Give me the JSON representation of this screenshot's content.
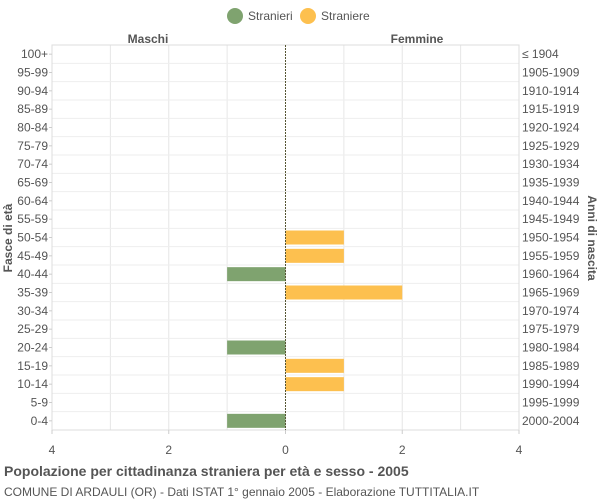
{
  "chart_data": {
    "type": "bar",
    "orientation": "horizontal-population-pyramid",
    "title": "Popolazione per cittadinanza straniera per età e sesso - 2005",
    "subtitle": "COMUNE DI ARDAULI (OR) - Dati ISTAT 1° gennaio 2005 - Elaborazione TUTTITALIA.IT",
    "ylabel_left": "Fasce di età",
    "ylabel_right": "Anni di nascita",
    "side_labels": {
      "left": "Maschi",
      "right": "Femmine"
    },
    "legend": {
      "position": "top-center",
      "entries": [
        {
          "name": "Stranieri",
          "color": "#7fa36f"
        },
        {
          "name": "Straniere",
          "color": "#fdc04f"
        }
      ]
    },
    "xlim": [
      -4,
      4
    ],
    "xticks": [
      "4",
      "2",
      "0",
      "2",
      "4"
    ],
    "xtick_values": [
      -4,
      -2,
      0,
      2,
      4
    ],
    "grid": true,
    "categories": [
      "100+",
      "95-99",
      "90-94",
      "85-89",
      "80-84",
      "75-79",
      "70-74",
      "65-69",
      "60-64",
      "55-59",
      "50-54",
      "45-49",
      "40-44",
      "35-39",
      "30-34",
      "25-29",
      "20-24",
      "15-19",
      "10-14",
      "5-9",
      "0-4"
    ],
    "birth_years": [
      "≤ 1904",
      "1905-1909",
      "1910-1914",
      "1915-1919",
      "1920-1924",
      "1925-1929",
      "1930-1934",
      "1935-1939",
      "1940-1944",
      "1945-1949",
      "1950-1954",
      "1955-1959",
      "1960-1964",
      "1965-1969",
      "1970-1974",
      "1975-1979",
      "1980-1984",
      "1985-1989",
      "1990-1994",
      "1995-1999",
      "2000-2004"
    ],
    "series": [
      {
        "name": "Stranieri",
        "side": "left",
        "color": "#7fa36f",
        "values": [
          0,
          0,
          0,
          0,
          0,
          0,
          0,
          0,
          0,
          0,
          0,
          0,
          1,
          0,
          0,
          0,
          1,
          0,
          0,
          0,
          1
        ]
      },
      {
        "name": "Straniere",
        "side": "right",
        "color": "#fdc04f",
        "values": [
          0,
          0,
          0,
          0,
          0,
          0,
          0,
          0,
          0,
          0,
          1,
          1,
          0,
          2,
          0,
          0,
          0,
          1,
          1,
          0,
          0
        ]
      }
    ]
  }
}
